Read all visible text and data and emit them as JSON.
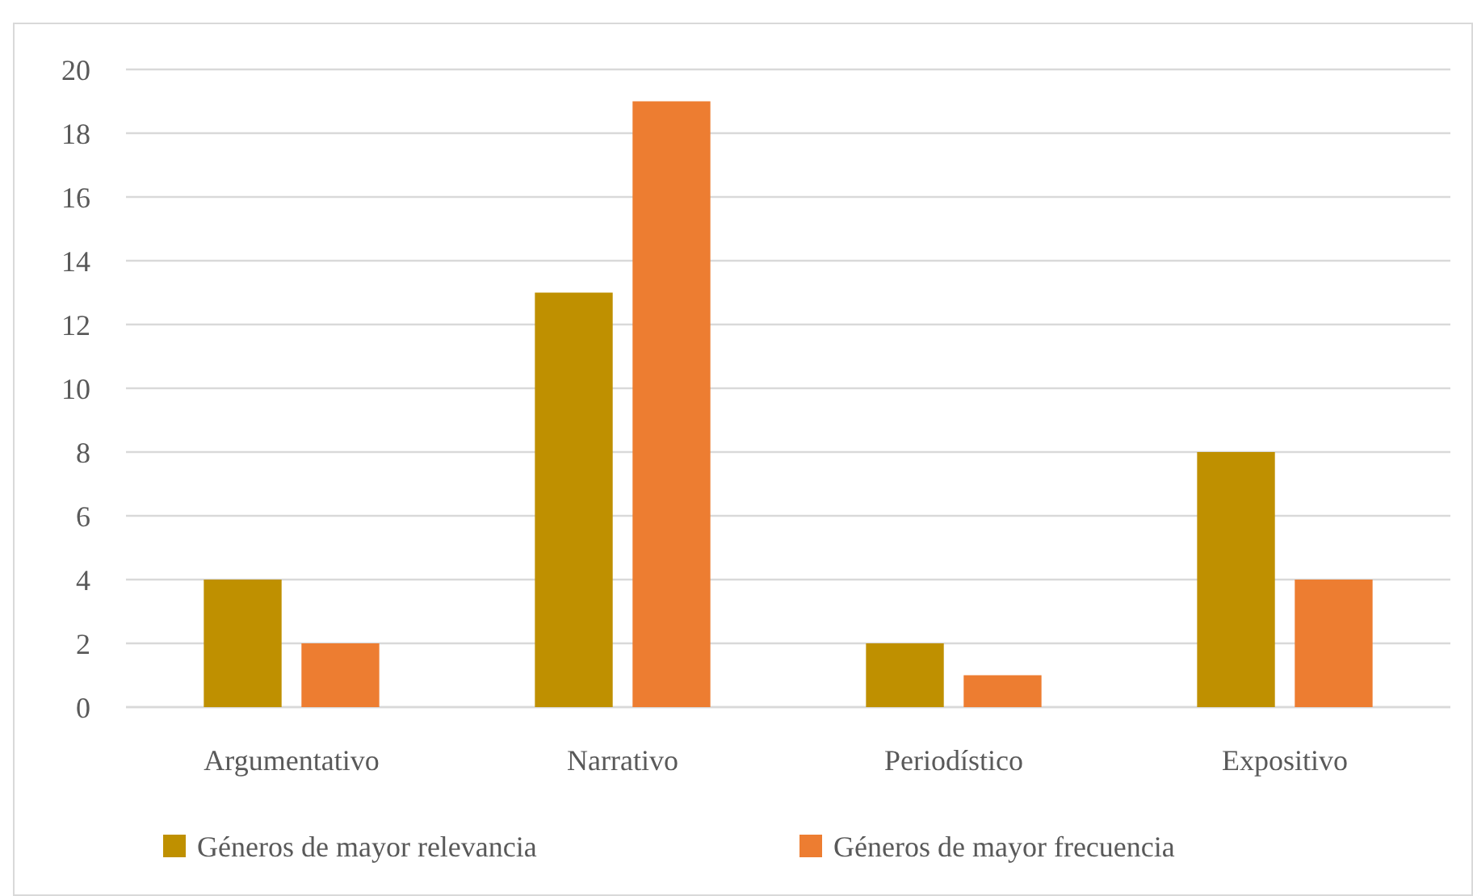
{
  "chart_data": {
    "type": "bar",
    "categories": [
      "Argumentativo",
      "Narrativo",
      "Periodístico",
      "Expositivo"
    ],
    "series": [
      {
        "name": "Géneros de mayor relevancia",
        "color": "#bf9000",
        "values": [
          4,
          13,
          2,
          8
        ]
      },
      {
        "name": "Géneros de mayor frecuencia",
        "color": "#ed7d31",
        "values": [
          2,
          19,
          1,
          4
        ]
      }
    ],
    "ylim": [
      0,
      20
    ],
    "yticks": [
      0,
      2,
      4,
      6,
      8,
      10,
      12,
      14,
      16,
      18,
      20
    ],
    "grid": "y",
    "legend": "bottom"
  }
}
